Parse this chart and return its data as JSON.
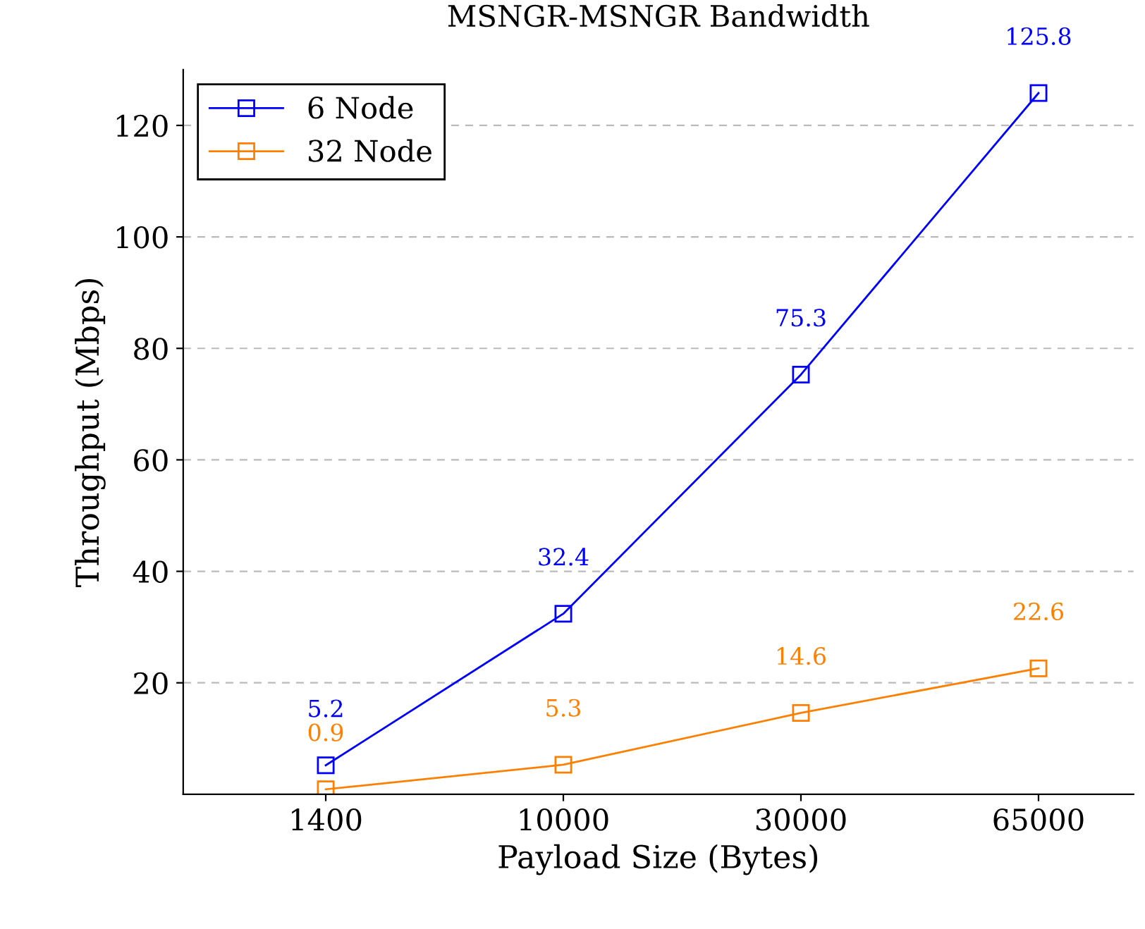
{
  "chart_data": {
    "type": "line",
    "title": "MSNGR-MSNGR Bandwidth",
    "xlabel": "Payload Size (Bytes)",
    "ylabel": "Throughput (Mbps)",
    "categories": [
      "1400",
      "10000",
      "30000",
      "65000"
    ],
    "series": [
      {
        "name": "6 Node",
        "color": "#0000ff",
        "values": [
          5.2,
          32.4,
          75.3,
          125.8
        ]
      },
      {
        "name": "32 Node",
        "color": "#ff8000",
        "values": [
          0.9,
          5.3,
          14.6,
          22.6
        ]
      }
    ],
    "ylim": [
      0,
      130
    ],
    "yticks": [
      20,
      40,
      60,
      80,
      100,
      120
    ],
    "grid": "y",
    "legend": "top left",
    "marker": "square",
    "line_style": "solid",
    "data_labels": true
  }
}
